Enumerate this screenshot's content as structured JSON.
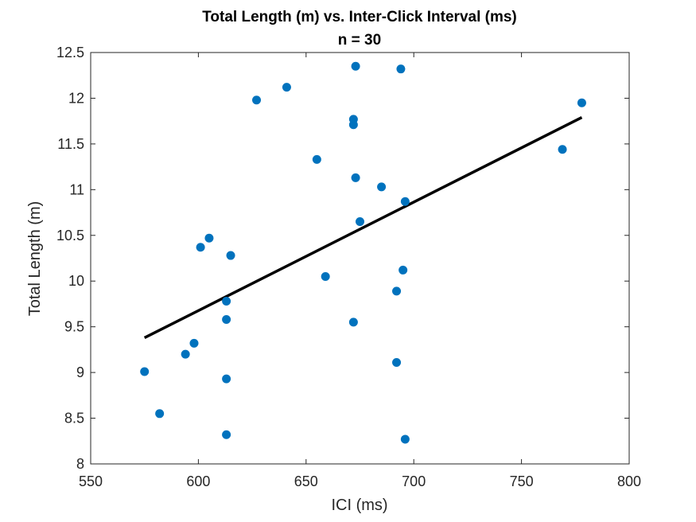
{
  "chart_data": {
    "type": "scatter",
    "title": "Total Length (m) vs. Inter-Click Interval (ms)",
    "subtitle": "n = 30",
    "xlabel": "ICI (ms)",
    "ylabel": "Total Length (m)",
    "xlim": [
      550,
      800
    ],
    "ylim": [
      8,
      12.5
    ],
    "xticks": [
      550,
      600,
      650,
      700,
      750,
      800
    ],
    "xtick_labels": [
      "550",
      "600",
      "650",
      "700",
      "750",
      "800"
    ],
    "yticks": [
      8,
      8.5,
      9,
      9.5,
      10,
      10.5,
      11,
      11.5,
      12,
      12.5
    ],
    "ytick_labels": [
      "8",
      "8.5",
      "9",
      "9.5",
      "10",
      "10.5",
      "11",
      "11.5",
      "12",
      "12.5"
    ],
    "grid": false,
    "marker_color": "#0072BD",
    "fit_color": "#000000",
    "points": [
      {
        "x": 575,
        "y": 9.01
      },
      {
        "x": 582,
        "y": 8.55
      },
      {
        "x": 594,
        "y": 9.2
      },
      {
        "x": 598,
        "y": 9.32
      },
      {
        "x": 601,
        "y": 10.37
      },
      {
        "x": 605,
        "y": 10.47
      },
      {
        "x": 613,
        "y": 9.78
      },
      {
        "x": 613,
        "y": 9.58
      },
      {
        "x": 613,
        "y": 8.93
      },
      {
        "x": 613,
        "y": 8.32
      },
      {
        "x": 615,
        "y": 10.28
      },
      {
        "x": 627,
        "y": 11.98
      },
      {
        "x": 641,
        "y": 12.12
      },
      {
        "x": 655,
        "y": 11.33
      },
      {
        "x": 659,
        "y": 10.05
      },
      {
        "x": 672,
        "y": 11.77
      },
      {
        "x": 672,
        "y": 11.71
      },
      {
        "x": 672,
        "y": 9.55
      },
      {
        "x": 673,
        "y": 12.35
      },
      {
        "x": 673,
        "y": 11.13
      },
      {
        "x": 675,
        "y": 10.65
      },
      {
        "x": 685,
        "y": 11.03
      },
      {
        "x": 692,
        "y": 9.89
      },
      {
        "x": 692,
        "y": 9.11
      },
      {
        "x": 694,
        "y": 12.32
      },
      {
        "x": 695,
        "y": 10.12
      },
      {
        "x": 696,
        "y": 10.87
      },
      {
        "x": 696,
        "y": 8.27
      },
      {
        "x": 769,
        "y": 11.44
      },
      {
        "x": 778,
        "y": 11.95
      }
    ],
    "fit_line": {
      "x": [
        575,
        778
      ],
      "y": [
        9.38,
        11.79
      ]
    }
  }
}
